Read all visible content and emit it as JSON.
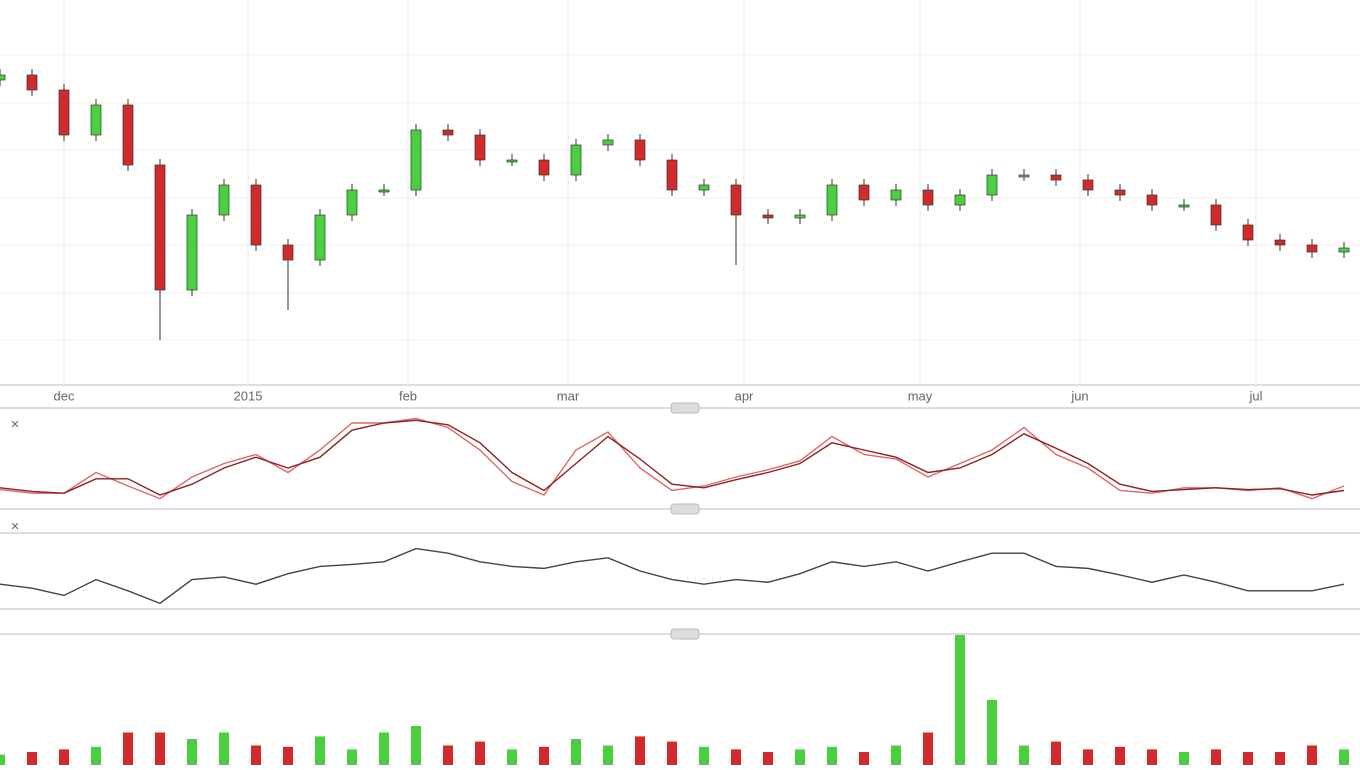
{
  "chart_data": [
    {
      "type": "candlestick",
      "x": [
        0,
        4,
        8,
        12,
        16,
        20,
        24,
        28,
        32,
        36,
        40,
        44,
        48,
        52,
        56,
        60,
        64,
        68,
        72,
        76,
        80,
        84,
        88,
        92,
        96,
        100,
        104,
        108,
        112,
        116,
        120,
        124,
        128,
        132,
        136,
        140,
        144,
        148,
        152,
        156,
        160,
        164,
        168
      ],
      "open": [
        305,
        310,
        295,
        250,
        280,
        220,
        95,
        170,
        200,
        140,
        125,
        170,
        195,
        195,
        255,
        250,
        225,
        225,
        210,
        240,
        245,
        225,
        195,
        200,
        170,
        167,
        170,
        200,
        185,
        195,
        180,
        190,
        210,
        210,
        205,
        195,
        190,
        180,
        180,
        160,
        145,
        140,
        133
      ],
      "high": [
        316,
        316,
        301,
        286,
        286,
        226,
        176,
        206,
        206,
        146,
        176,
        201,
        201,
        261,
        261,
        256,
        231,
        231,
        246,
        251,
        251,
        231,
        206,
        206,
        176,
        176,
        206,
        206,
        201,
        201,
        196,
        216,
        216,
        216,
        211,
        201,
        196,
        186,
        186,
        166,
        151,
        146,
        143
      ],
      "low": [
        299,
        289,
        244,
        244,
        214,
        45,
        89,
        164,
        134,
        75,
        119,
        164,
        189,
        189,
        244,
        219,
        219,
        204,
        204,
        234,
        219,
        189,
        189,
        120,
        161,
        161,
        164,
        179,
        179,
        174,
        174,
        184,
        204,
        199,
        189,
        184,
        174,
        174,
        154,
        139,
        134,
        127,
        127
      ],
      "close": [
        310,
        295,
        250,
        280,
        220,
        95,
        170,
        200,
        140,
        125,
        170,
        195,
        195,
        255,
        250,
        225,
        225,
        210,
        240,
        245,
        225,
        195,
        200,
        170,
        167,
        170,
        200,
        185,
        195,
        180,
        190,
        210,
        210,
        205,
        195,
        190,
        180,
        180,
        160,
        145,
        140,
        133,
        137
      ],
      "up_color": "#4ccf3e",
      "down_color": "#d22a2a",
      "xlim": [
        0,
        170
      ],
      "ylim": [
        0,
        385
      ],
      "xticks": [
        {
          "value": 8,
          "label": "dec"
        },
        {
          "value": 31,
          "label": "2015"
        },
        {
          "value": 51,
          "label": "feb"
        },
        {
          "value": 71,
          "label": "mar"
        },
        {
          "value": 93,
          "label": "apr"
        },
        {
          "value": 115,
          "label": "may"
        },
        {
          "value": 135,
          "label": "jun"
        },
        {
          "value": 157,
          "label": "jul"
        }
      ],
      "grid": true
    },
    {
      "type": "line",
      "close_label": "×",
      "ylim": [
        0,
        100
      ],
      "series": [
        {
          "color": "#e06666",
          "values": [
            16,
            12,
            12,
            35,
            20,
            6,
            30,
            45,
            55,
            35,
            60,
            90,
            90,
            95,
            85,
            60,
            25,
            10,
            60,
            80,
            40,
            15,
            20,
            30,
            38,
            48,
            75,
            55,
            50,
            30,
            45,
            60,
            85,
            55,
            40,
            15,
            12,
            18,
            18,
            15,
            18,
            6,
            20
          ]
        },
        {
          "color": "#8b2222",
          "values": [
            18,
            14,
            12,
            28,
            28,
            10,
            22,
            40,
            52,
            40,
            52,
            82,
            90,
            93,
            88,
            68,
            35,
            15,
            45,
            75,
            50,
            22,
            18,
            27,
            35,
            45,
            68,
            60,
            52,
            35,
            40,
            55,
            78,
            62,
            45,
            22,
            14,
            16,
            18,
            16,
            17,
            10,
            15
          ]
        }
      ]
    },
    {
      "type": "line",
      "close_label": "×",
      "ylim": [
        0,
        100
      ],
      "series": [
        {
          "color": "#444444",
          "values": [
            33,
            27,
            16,
            40,
            23,
            4,
            40,
            44,
            33,
            49,
            60,
            63,
            67,
            87,
            80,
            67,
            60,
            57,
            67,
            73,
            53,
            40,
            33,
            40,
            36,
            49,
            67,
            60,
            67,
            53,
            67,
            80,
            80,
            60,
            57,
            47,
            36,
            47,
            36,
            23,
            23,
            23,
            33
          ]
        }
      ]
    },
    {
      "type": "volume",
      "ylim": [
        0,
        100
      ],
      "values": [
        8,
        10,
        12,
        14,
        25,
        25,
        20,
        25,
        15,
        14,
        22,
        12,
        25,
        30,
        15,
        18,
        12,
        14,
        20,
        15,
        22,
        18,
        14,
        12,
        10,
        12,
        14,
        10,
        15,
        25,
        100,
        50,
        15,
        18,
        12,
        14,
        12,
        10,
        12,
        10,
        10,
        15,
        12
      ]
    }
  ]
}
